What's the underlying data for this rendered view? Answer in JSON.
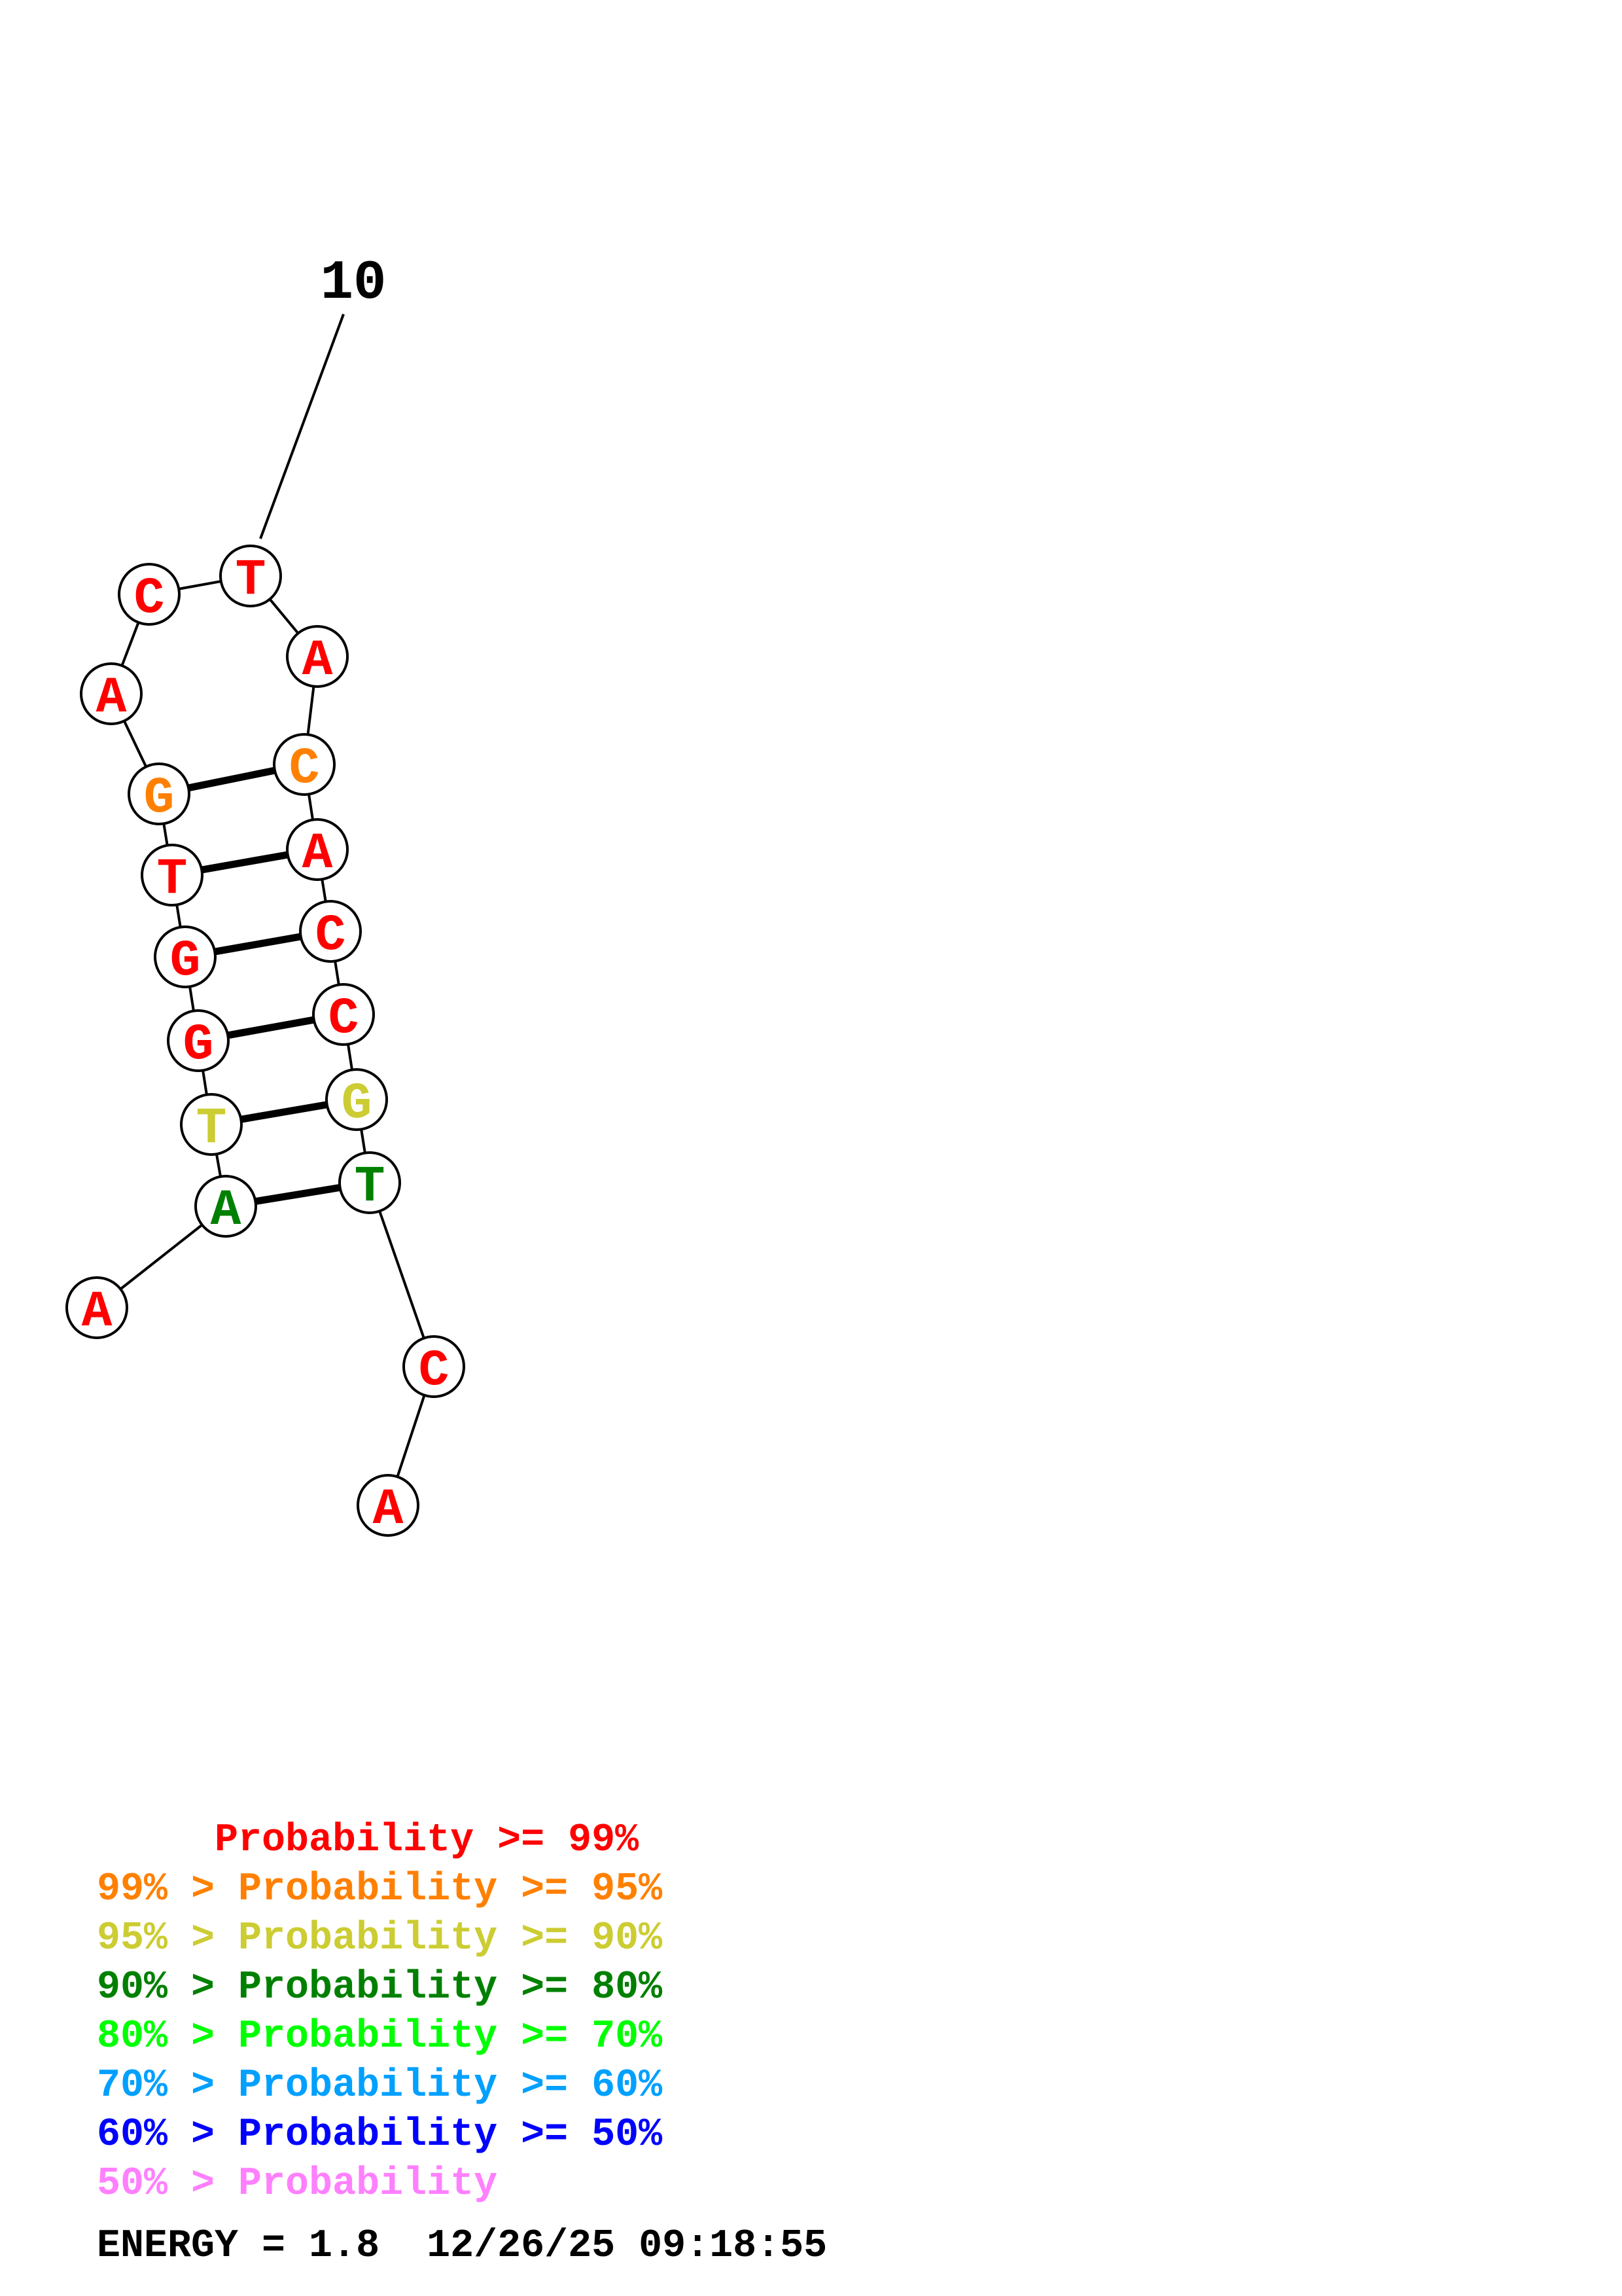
{
  "structure": {
    "index_label": "10",
    "nucleotides": [
      {
        "base": "A",
        "color": "#ff0000"
      },
      {
        "base": "A",
        "color": "#008000"
      },
      {
        "base": "T",
        "color": "#cccc33"
      },
      {
        "base": "G",
        "color": "#ff0000"
      },
      {
        "base": "G",
        "color": "#ff0000"
      },
      {
        "base": "T",
        "color": "#ff0000"
      },
      {
        "base": "G",
        "color": "#ff8000"
      },
      {
        "base": "A",
        "color": "#ff0000"
      },
      {
        "base": "C",
        "color": "#ff0000"
      },
      {
        "base": "T",
        "color": "#ff0000"
      },
      {
        "base": "A",
        "color": "#ff0000"
      },
      {
        "base": "C",
        "color": "#ff8000"
      },
      {
        "base": "A",
        "color": "#ff0000"
      },
      {
        "base": "C",
        "color": "#ff0000"
      },
      {
        "base": "C",
        "color": "#ff0000"
      },
      {
        "base": "G",
        "color": "#cccc33"
      },
      {
        "base": "T",
        "color": "#008000"
      },
      {
        "base": "C",
        "color": "#ff0000"
      },
      {
        "base": "A",
        "color": "#ff0000"
      }
    ],
    "base_pairs": [
      [
        2,
        17
      ],
      [
        3,
        16
      ],
      [
        4,
        15
      ],
      [
        5,
        14
      ],
      [
        6,
        13
      ],
      [
        7,
        12
      ]
    ]
  },
  "legend": [
    {
      "text": "     Probability >= 99%",
      "color": "#ff0000"
    },
    {
      "text": "99% > Probability >= 95%",
      "color": "#ff8000"
    },
    {
      "text": "95% > Probability >= 90%",
      "color": "#cccc33"
    },
    {
      "text": "90% > Probability >= 80%",
      "color": "#008000"
    },
    {
      "text": "80% > Probability >= 70%",
      "color": "#00ff00"
    },
    {
      "text": "70% > Probability >= 60%",
      "color": "#00a0ff"
    },
    {
      "text": "60% > Probability >= 50%",
      "color": "#0000ff"
    },
    {
      "text": "50% > Probability",
      "color": "#ff80ff"
    }
  ],
  "footer": {
    "energy_line": "ENERGY = 1.8  12/26/25 09:18:55"
  }
}
